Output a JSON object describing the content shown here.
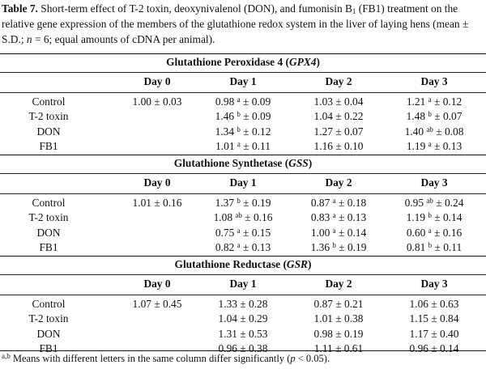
{
  "caption": {
    "label": "Table 7.",
    "text_a": " Short-term effect of T-2 toxin, deoxynivalenol (DON), and fumonisin B",
    "sub": "1",
    "text_b": " (FB1) treatment on the relative gene expression of the members of the glutathione redox system in the liver of laying hens (mean ± S.D.; ",
    "n_var": "n",
    "text_c": " = 6; equal amounts of cDNA per animal)."
  },
  "columns": [
    "Day 0",
    "Day 1",
    "Day 2",
    "Day 3"
  ],
  "row_labels": [
    "Control",
    "T-2 toxin",
    "DON",
    "FB1"
  ],
  "sections": [
    {
      "title_a": "Glutathione Peroxidase 4 (",
      "abbr": "GPX4",
      "title_b": ")",
      "rows": [
        [
          {
            "v": "1.00",
            "s": "",
            "e": "0.03"
          },
          {
            "v": "0.98",
            "s": "a",
            "e": "0.09"
          },
          {
            "v": "1.03",
            "s": "",
            "e": "0.04"
          },
          {
            "v": "1.21",
            "s": "a",
            "e": "0.12"
          }
        ],
        [
          {
            "v": "",
            "s": "",
            "e": ""
          },
          {
            "v": "1.46",
            "s": "b",
            "e": "0.09"
          },
          {
            "v": "1.04",
            "s": "",
            "e": "0.22"
          },
          {
            "v": "1.48",
            "s": "b",
            "e": "0.07"
          }
        ],
        [
          {
            "v": "",
            "s": "",
            "e": ""
          },
          {
            "v": "1.34",
            "s": "b",
            "e": "0.12"
          },
          {
            "v": "1.27",
            "s": "",
            "e": "0.07"
          },
          {
            "v": "1.40",
            "s": "ab",
            "e": "0.08"
          }
        ],
        [
          {
            "v": "",
            "s": "",
            "e": ""
          },
          {
            "v": "1.01",
            "s": "a",
            "e": "0.11"
          },
          {
            "v": "1.16",
            "s": "",
            "e": "0.10"
          },
          {
            "v": "1.19",
            "s": "a",
            "e": "0.13"
          }
        ]
      ]
    },
    {
      "title_a": "Glutathione Synthetase (",
      "abbr": "GSS",
      "title_b": ")",
      "rows": [
        [
          {
            "v": "1.01",
            "s": "",
            "e": "0.16"
          },
          {
            "v": "1.37",
            "s": "b",
            "e": "0.19"
          },
          {
            "v": "0.87",
            "s": "a",
            "e": "0.18"
          },
          {
            "v": "0.95",
            "s": "ab",
            "e": "0.24"
          }
        ],
        [
          {
            "v": "",
            "s": "",
            "e": ""
          },
          {
            "v": "1.08",
            "s": "ab",
            "e": "0.16"
          },
          {
            "v": "0.83",
            "s": "a",
            "e": "0.13"
          },
          {
            "v": "1.19",
            "s": "b",
            "e": "0.14"
          }
        ],
        [
          {
            "v": "",
            "s": "",
            "e": ""
          },
          {
            "v": "0.75",
            "s": "a",
            "e": "0.15"
          },
          {
            "v": "1.00",
            "s": "a",
            "e": "0.14"
          },
          {
            "v": "0.60",
            "s": "a",
            "e": "0.16"
          }
        ],
        [
          {
            "v": "",
            "s": "",
            "e": ""
          },
          {
            "v": "0.82",
            "s": "a",
            "e": "0.13"
          },
          {
            "v": "1.36",
            "s": "b",
            "e": "0.19"
          },
          {
            "v": "0.81",
            "s": "b",
            "e": "0.11"
          }
        ]
      ]
    },
    {
      "title_a": "Glutathione Reductase (",
      "abbr": "GSR",
      "title_b": ")",
      "rows": [
        [
          {
            "v": "1.07",
            "s": "",
            "e": "0.45"
          },
          {
            "v": "1.33",
            "s": "",
            "e": "0.28"
          },
          {
            "v": "0.87",
            "s": "",
            "e": "0.21"
          },
          {
            "v": "1.06",
            "s": "",
            "e": "0.63"
          }
        ],
        [
          {
            "v": "",
            "s": "",
            "e": ""
          },
          {
            "v": "1.04",
            "s": "",
            "e": "0.29"
          },
          {
            "v": "1.01",
            "s": "",
            "e": "0.38"
          },
          {
            "v": "1.15",
            "s": "",
            "e": "0.84"
          }
        ],
        [
          {
            "v": "",
            "s": "",
            "e": ""
          },
          {
            "v": "1.31",
            "s": "",
            "e": "0.53"
          },
          {
            "v": "0.98",
            "s": "",
            "e": "0.19"
          },
          {
            "v": "1.17",
            "s": "",
            "e": "0.40"
          }
        ],
        [
          {
            "v": "",
            "s": "",
            "e": ""
          },
          {
            "v": "0.96",
            "s": "",
            "e": "0.38"
          },
          {
            "v": "1.11",
            "s": "",
            "e": "0.61"
          },
          {
            "v": "0.96",
            "s": "",
            "e": "0.14"
          }
        ]
      ]
    }
  ],
  "pm": "±",
  "footnote": {
    "sup": "a,b",
    "text_a": " Means with different letters in the same column differ significantly (",
    "p_var": "p",
    "text_b": " < 0.05)."
  }
}
